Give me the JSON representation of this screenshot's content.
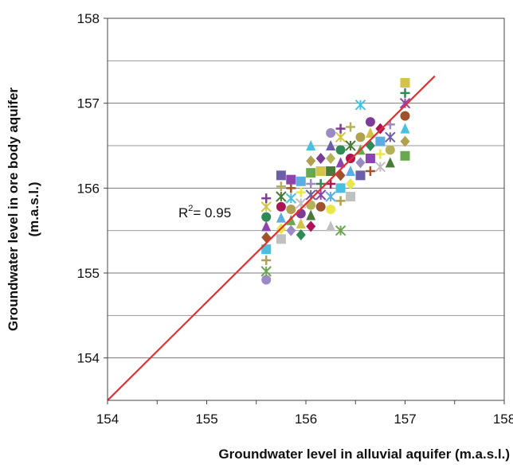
{
  "chart_data": {
    "type": "scatter",
    "xlabel": "Groundwater level in alluvial aquifer (m.a.s.l.)",
    "ylabel_line1": "Groundwater level in ore body aquifer",
    "ylabel_line2": "(m.a.s.l.)",
    "xlim": [
      154,
      158
    ],
    "ylim": [
      153.5,
      158
    ],
    "x_ticks": [
      "154",
      "155",
      "156",
      "157",
      "158"
    ],
    "y_ticks": [
      "154",
      "155",
      "156",
      "157",
      "158"
    ],
    "grid": "horizontal",
    "annotation": {
      "base": "R",
      "sup": "2",
      "text": "= 0.95"
    },
    "fit_line": {
      "x": [
        154,
        157.3
      ],
      "y": [
        153.5,
        157.32
      ],
      "color": "#e03030"
    },
    "marker_colors": [
      "#9b8ac4",
      "#6aa84f",
      "#b0a050",
      "#48c0e0",
      "#a0522d",
      "#8e44ad",
      "#2e8b57",
      "#d4c34a",
      "#7d3c98",
      "#c0c0c0",
      "#e8e84a",
      "#5dade2",
      "#ad1457",
      "#4a7a3a",
      "#b5b05a",
      "#6c5fa8"
    ],
    "series": [
      {
        "name": "",
        "points": [
          [
            155.6,
            154.92
          ],
          [
            155.6,
            155.02
          ],
          [
            155.6,
            155.15
          ],
          [
            155.6,
            155.28
          ],
          [
            155.6,
            155.42
          ],
          [
            155.6,
            155.55
          ],
          [
            155.6,
            155.66
          ],
          [
            155.6,
            155.78
          ],
          [
            155.6,
            155.88
          ],
          [
            155.75,
            155.4
          ],
          [
            155.75,
            155.52
          ],
          [
            155.75,
            155.65
          ],
          [
            155.75,
            155.78
          ],
          [
            155.75,
            155.9
          ],
          [
            155.75,
            156.02
          ],
          [
            155.75,
            156.15
          ],
          [
            155.85,
            155.5
          ],
          [
            155.85,
            155.62
          ],
          [
            155.85,
            155.75
          ],
          [
            155.85,
            155.88
          ],
          [
            155.85,
            156.0
          ],
          [
            155.85,
            156.1
          ],
          [
            155.95,
            155.45
          ],
          [
            155.95,
            155.58
          ],
          [
            155.95,
            155.7
          ],
          [
            155.95,
            155.82
          ],
          [
            155.95,
            155.95
          ],
          [
            155.95,
            156.08
          ],
          [
            156.05,
            155.55
          ],
          [
            156.05,
            155.68
          ],
          [
            156.05,
            155.8
          ],
          [
            156.05,
            155.92
          ],
          [
            156.05,
            156.05
          ],
          [
            156.05,
            156.18
          ],
          [
            156.05,
            156.32
          ],
          [
            156.05,
            156.5
          ],
          [
            156.15,
            155.78
          ],
          [
            156.15,
            155.92
          ],
          [
            156.15,
            156.05
          ],
          [
            156.15,
            156.2
          ],
          [
            156.15,
            156.35
          ],
          [
            156.25,
            155.55
          ],
          [
            156.25,
            155.75
          ],
          [
            156.25,
            155.9
          ],
          [
            156.25,
            156.05
          ],
          [
            156.25,
            156.2
          ],
          [
            156.25,
            156.35
          ],
          [
            156.25,
            156.5
          ],
          [
            156.25,
            156.65
          ],
          [
            156.35,
            155.5
          ],
          [
            156.35,
            155.85
          ],
          [
            156.35,
            156.0
          ],
          [
            156.35,
            156.15
          ],
          [
            156.35,
            156.3
          ],
          [
            156.35,
            156.45
          ],
          [
            156.35,
            156.6
          ],
          [
            156.35,
            156.7
          ],
          [
            156.45,
            155.9
          ],
          [
            156.45,
            156.05
          ],
          [
            156.45,
            156.2
          ],
          [
            156.45,
            156.35
          ],
          [
            156.45,
            156.5
          ],
          [
            156.45,
            156.72
          ],
          [
            156.55,
            156.15
          ],
          [
            156.55,
            156.3
          ],
          [
            156.55,
            156.45
          ],
          [
            156.55,
            156.6
          ],
          [
            156.55,
            156.98
          ],
          [
            156.65,
            156.2
          ],
          [
            156.65,
            156.35
          ],
          [
            156.65,
            156.5
          ],
          [
            156.65,
            156.65
          ],
          [
            156.65,
            156.78
          ],
          [
            156.75,
            156.25
          ],
          [
            156.75,
            156.4
          ],
          [
            156.75,
            156.55
          ],
          [
            156.75,
            156.7
          ],
          [
            156.85,
            156.3
          ],
          [
            156.85,
            156.45
          ],
          [
            156.85,
            156.6
          ],
          [
            156.85,
            156.75
          ],
          [
            157.0,
            156.38
          ],
          [
            157.0,
            156.55
          ],
          [
            157.0,
            156.7
          ],
          [
            157.0,
            156.85
          ],
          [
            157.0,
            157.0
          ],
          [
            157.0,
            157.12
          ],
          [
            157.0,
            157.24
          ]
        ]
      }
    ]
  }
}
